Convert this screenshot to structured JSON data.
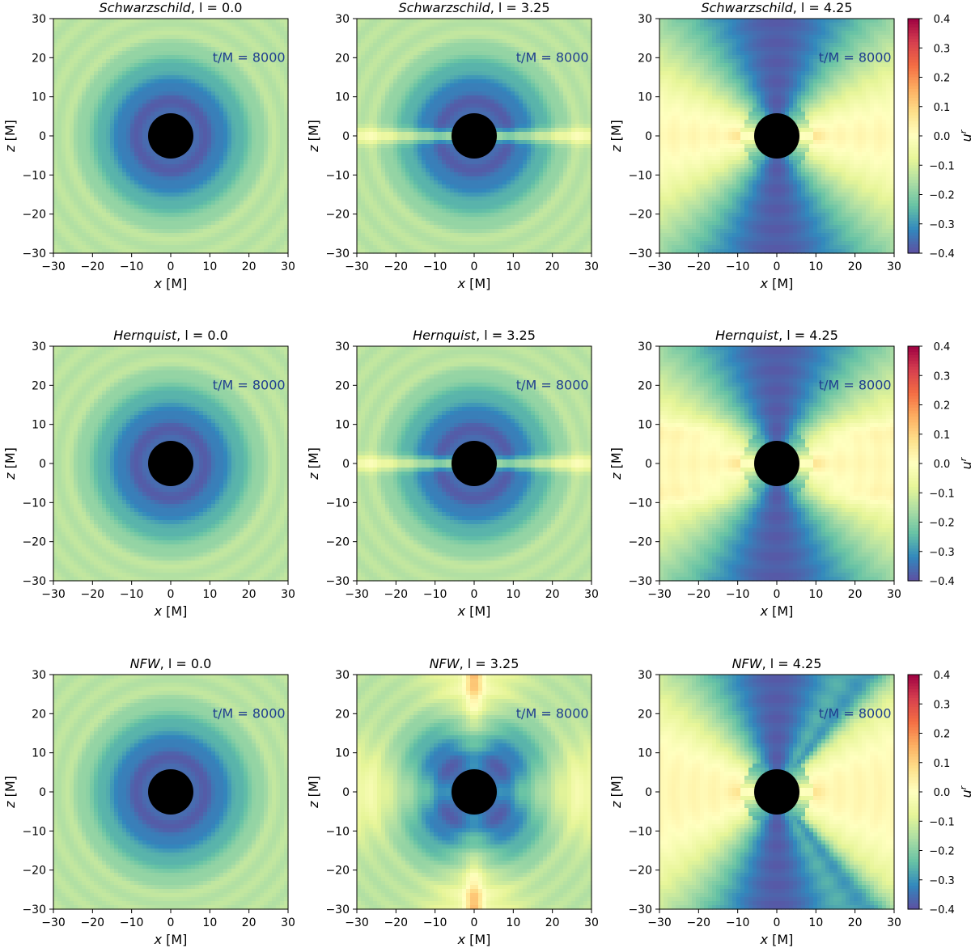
{
  "chart_data": {
    "type": "heatmap",
    "quantity": "u^r",
    "xlabel_var": "x",
    "ylabel_var": "z",
    "axis_unit": "[M]",
    "xlim": [
      -30,
      30
    ],
    "ylim": [
      -30,
      30
    ],
    "xticks": [
      "−30",
      "−20",
      "−10",
      "0",
      "10",
      "20",
      "30"
    ],
    "yticks": [
      "30",
      "20",
      "10",
      "0",
      "−10",
      "−20",
      "−30"
    ],
    "colorbar": {
      "label_base": "u",
      "label_sup": "r",
      "range": [
        -0.4,
        0.4
      ],
      "colormap": "Spectral_r",
      "ticks": [
        "0.4",
        "0.3",
        "0.2",
        "0.1",
        "0.0",
        "−0.1",
        "−0.2",
        "−0.3",
        "−0.4"
      ],
      "colors": [
        "#5e4fa2",
        "#3288bd",
        "#66c2a5",
        "#abdda4",
        "#e6f598",
        "#ffffbf",
        "#fee08b",
        "#fdae61",
        "#f46d43",
        "#d53e4f",
        "#9e0142"
      ]
    },
    "time_label": "t/M = 8000",
    "time_label_color": "#1f3f8f",
    "horizon_radius_M": 2,
    "rows": [
      {
        "model": "Schwarzschild",
        "panels": [
          {
            "l": "0.0",
            "flow": "spherical inflow",
            "title_suffix": ", l = 0.0"
          },
          {
            "l": "3.25",
            "flow": "slowed inflow near equator",
            "title_suffix": ", l = 3.25"
          },
          {
            "l": "4.25",
            "flow": "equatorial outflow with polar funnels",
            "title_suffix": ", l = 4.25"
          }
        ]
      },
      {
        "model": "Hernquist",
        "panels": [
          {
            "l": "0.0",
            "flow": "spherical inflow",
            "title_suffix": ", l = 0.0"
          },
          {
            "l": "3.25",
            "flow": "slowed inflow near equator",
            "title_suffix": ", l = 3.25"
          },
          {
            "l": "4.25",
            "flow": "equatorial outflow with polar funnels",
            "title_suffix": ", l = 4.25"
          }
        ]
      },
      {
        "model": "NFW",
        "panels": [
          {
            "l": "0.0",
            "flow": "spherical inflow",
            "title_suffix": ", l = 0.0"
          },
          {
            "l": "3.25",
            "flow": "four-lobed inflow with polar streams",
            "title_suffix": ", l = 3.25"
          },
          {
            "l": "4.25",
            "flow": "equatorial outflow with wide wings",
            "title_suffix": ", l = 4.25"
          }
        ]
      }
    ]
  }
}
